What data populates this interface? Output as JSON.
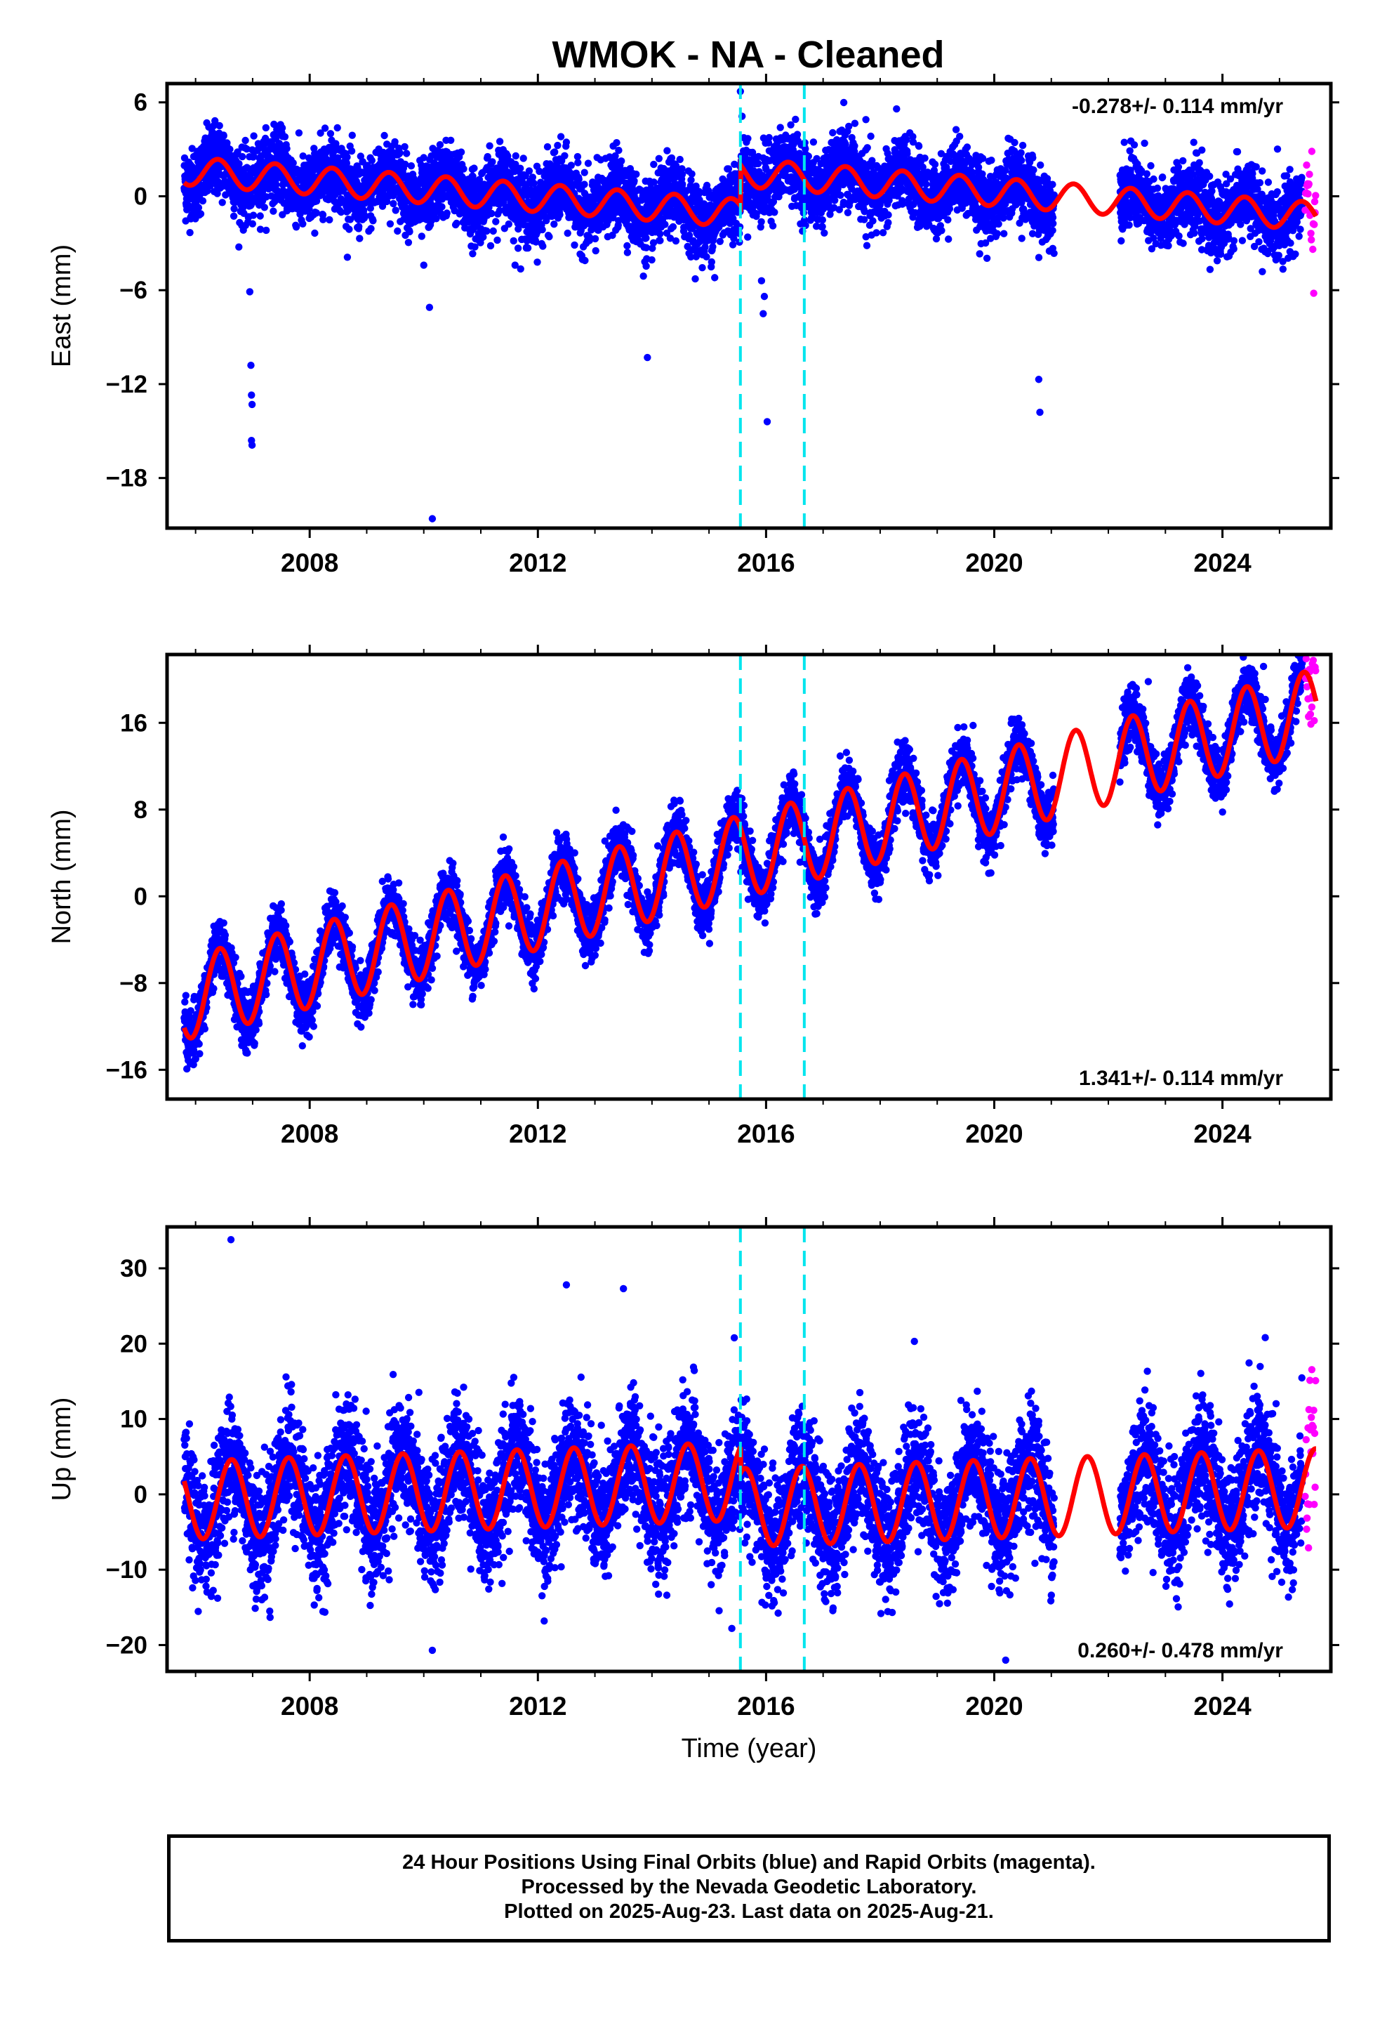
{
  "title": "WMOK  - NA - Cleaned",
  "colors": {
    "final": "#0000ff",
    "rapid": "#ff00ff",
    "model": "#ff0000",
    "event_line": "#00e5ee"
  },
  "chart_data": [
    {
      "type": "scatter",
      "panel": "east",
      "ylabel": "East (mm)",
      "xlim": [
        2005.5,
        2025.9
      ],
      "ylim": [
        -21.2,
        7.2
      ],
      "yticks": [
        6,
        0,
        -6,
        -12,
        -18
      ],
      "xticks": [
        2008,
        2012,
        2016,
        2020,
        2024
      ],
      "show_xtick_labels": true,
      "rate_label": "-0.278+/- 0.114 mm/yr",
      "rate_position": "top-right",
      "velocity": -0.278,
      "annual_amplitude": 0.9,
      "annual_phase": 0.9,
      "offset_2015": 2.6,
      "outliers": [
        {
          "x": 2006.95,
          "y": -6.1
        },
        {
          "x": 2006.97,
          "y": -10.8
        },
        {
          "x": 2006.98,
          "y": -12.7
        },
        {
          "x": 2006.99,
          "y": -13.3
        },
        {
          "x": 2006.98,
          "y": -15.6
        },
        {
          "x": 2006.99,
          "y": -15.9
        },
        {
          "x": 2010.0,
          "y": -4.4
        },
        {
          "x": 2010.1,
          "y": -7.1
        },
        {
          "x": 2010.15,
          "y": -20.6
        },
        {
          "x": 2013.92,
          "y": -10.3
        },
        {
          "x": 2013.85,
          "y": -5.1
        },
        {
          "x": 2015.1,
          "y": -5.2
        },
        {
          "x": 2015.92,
          "y": -5.4
        },
        {
          "x": 2015.97,
          "y": -6.4
        },
        {
          "x": 2015.95,
          "y": -7.5
        },
        {
          "x": 2016.02,
          "y": -14.4
        },
        {
          "x": 2020.78,
          "y": -11.7
        },
        {
          "x": 2020.8,
          "y": -13.8
        },
        {
          "x": 2015.55,
          "y": 6.7
        },
        {
          "x": 2017.75,
          "y": 4.9
        },
        {
          "x": 2011.6,
          "y": -4.4
        }
      ]
    },
    {
      "type": "scatter",
      "panel": "north",
      "ylabel": "North (mm)",
      "xlim": [
        2005.5,
        2025.9
      ],
      "ylim": [
        -18.7,
        22.3
      ],
      "yticks": [
        16,
        8,
        0,
        -8,
        -16
      ],
      "xticks": [
        2008,
        2012,
        2016,
        2020,
        2024
      ],
      "show_xtick_labels": true,
      "rate_label": "1.341+/- 0.114 mm/yr",
      "rate_position": "bottom-right",
      "velocity": 1.341,
      "annual_amplitude": 3.8,
      "annual_phase": 1.1,
      "offset_2015": 0,
      "outliers": [
        {
          "x": 2024.72,
          "y": 21.2
        },
        {
          "x": 2022.7,
          "y": 19.8
        },
        {
          "x": 2019.5,
          "y": 14.2
        }
      ]
    },
    {
      "type": "scatter",
      "panel": "up",
      "ylabel": "Up (mm)",
      "xlabel": "Time (year)",
      "xlim": [
        2005.5,
        2025.9
      ],
      "ylim": [
        -23.5,
        35.5
      ],
      "yticks": [
        30,
        20,
        10,
        0,
        -10,
        -20
      ],
      "xticks": [
        2008,
        2012,
        2016,
        2020,
        2024
      ],
      "show_xtick_labels": true,
      "rate_label": "0.260+/- 0.478 mm/yr",
      "rate_position": "bottom-right",
      "velocity": 0.26,
      "annual_amplitude": 5.2,
      "annual_phase": 2.4,
      "offset_2015": -3.5,
      "outliers": [
        {
          "x": 2006.62,
          "y": 33.8
        },
        {
          "x": 2012.5,
          "y": 27.8
        },
        {
          "x": 2013.5,
          "y": 27.3
        },
        {
          "x": 2018.6,
          "y": 20.3
        },
        {
          "x": 2010.15,
          "y": -20.7
        },
        {
          "x": 2015.4,
          "y": -17.8
        },
        {
          "x": 2020.2,
          "y": -22.0
        },
        {
          "x": 2024.75,
          "y": 20.8
        },
        {
          "x": 2007.3,
          "y": -15.5
        }
      ]
    }
  ],
  "series": [
    {
      "name": "Final Orbits (blue)",
      "color": "#0000ff",
      "x_start": 2005.8,
      "x_end": 2025.4
    },
    {
      "name": "Rapid Orbits (magenta)",
      "color": "#ff00ff",
      "x_start": 2025.45,
      "x_end": 2025.64
    }
  ],
  "data_gap": [
    2021.05,
    2022.2
  ],
  "event_lines": [
    2015.55,
    2016.67
  ],
  "footer": {
    "line1": "24 Hour Positions Using Final Orbits (blue) and Rapid Orbits (magenta).",
    "line2": "Processed by the Nevada Geodetic Laboratory.",
    "line3": "Plotted on 2025-Aug-23. Last data on 2025-Aug-21."
  }
}
